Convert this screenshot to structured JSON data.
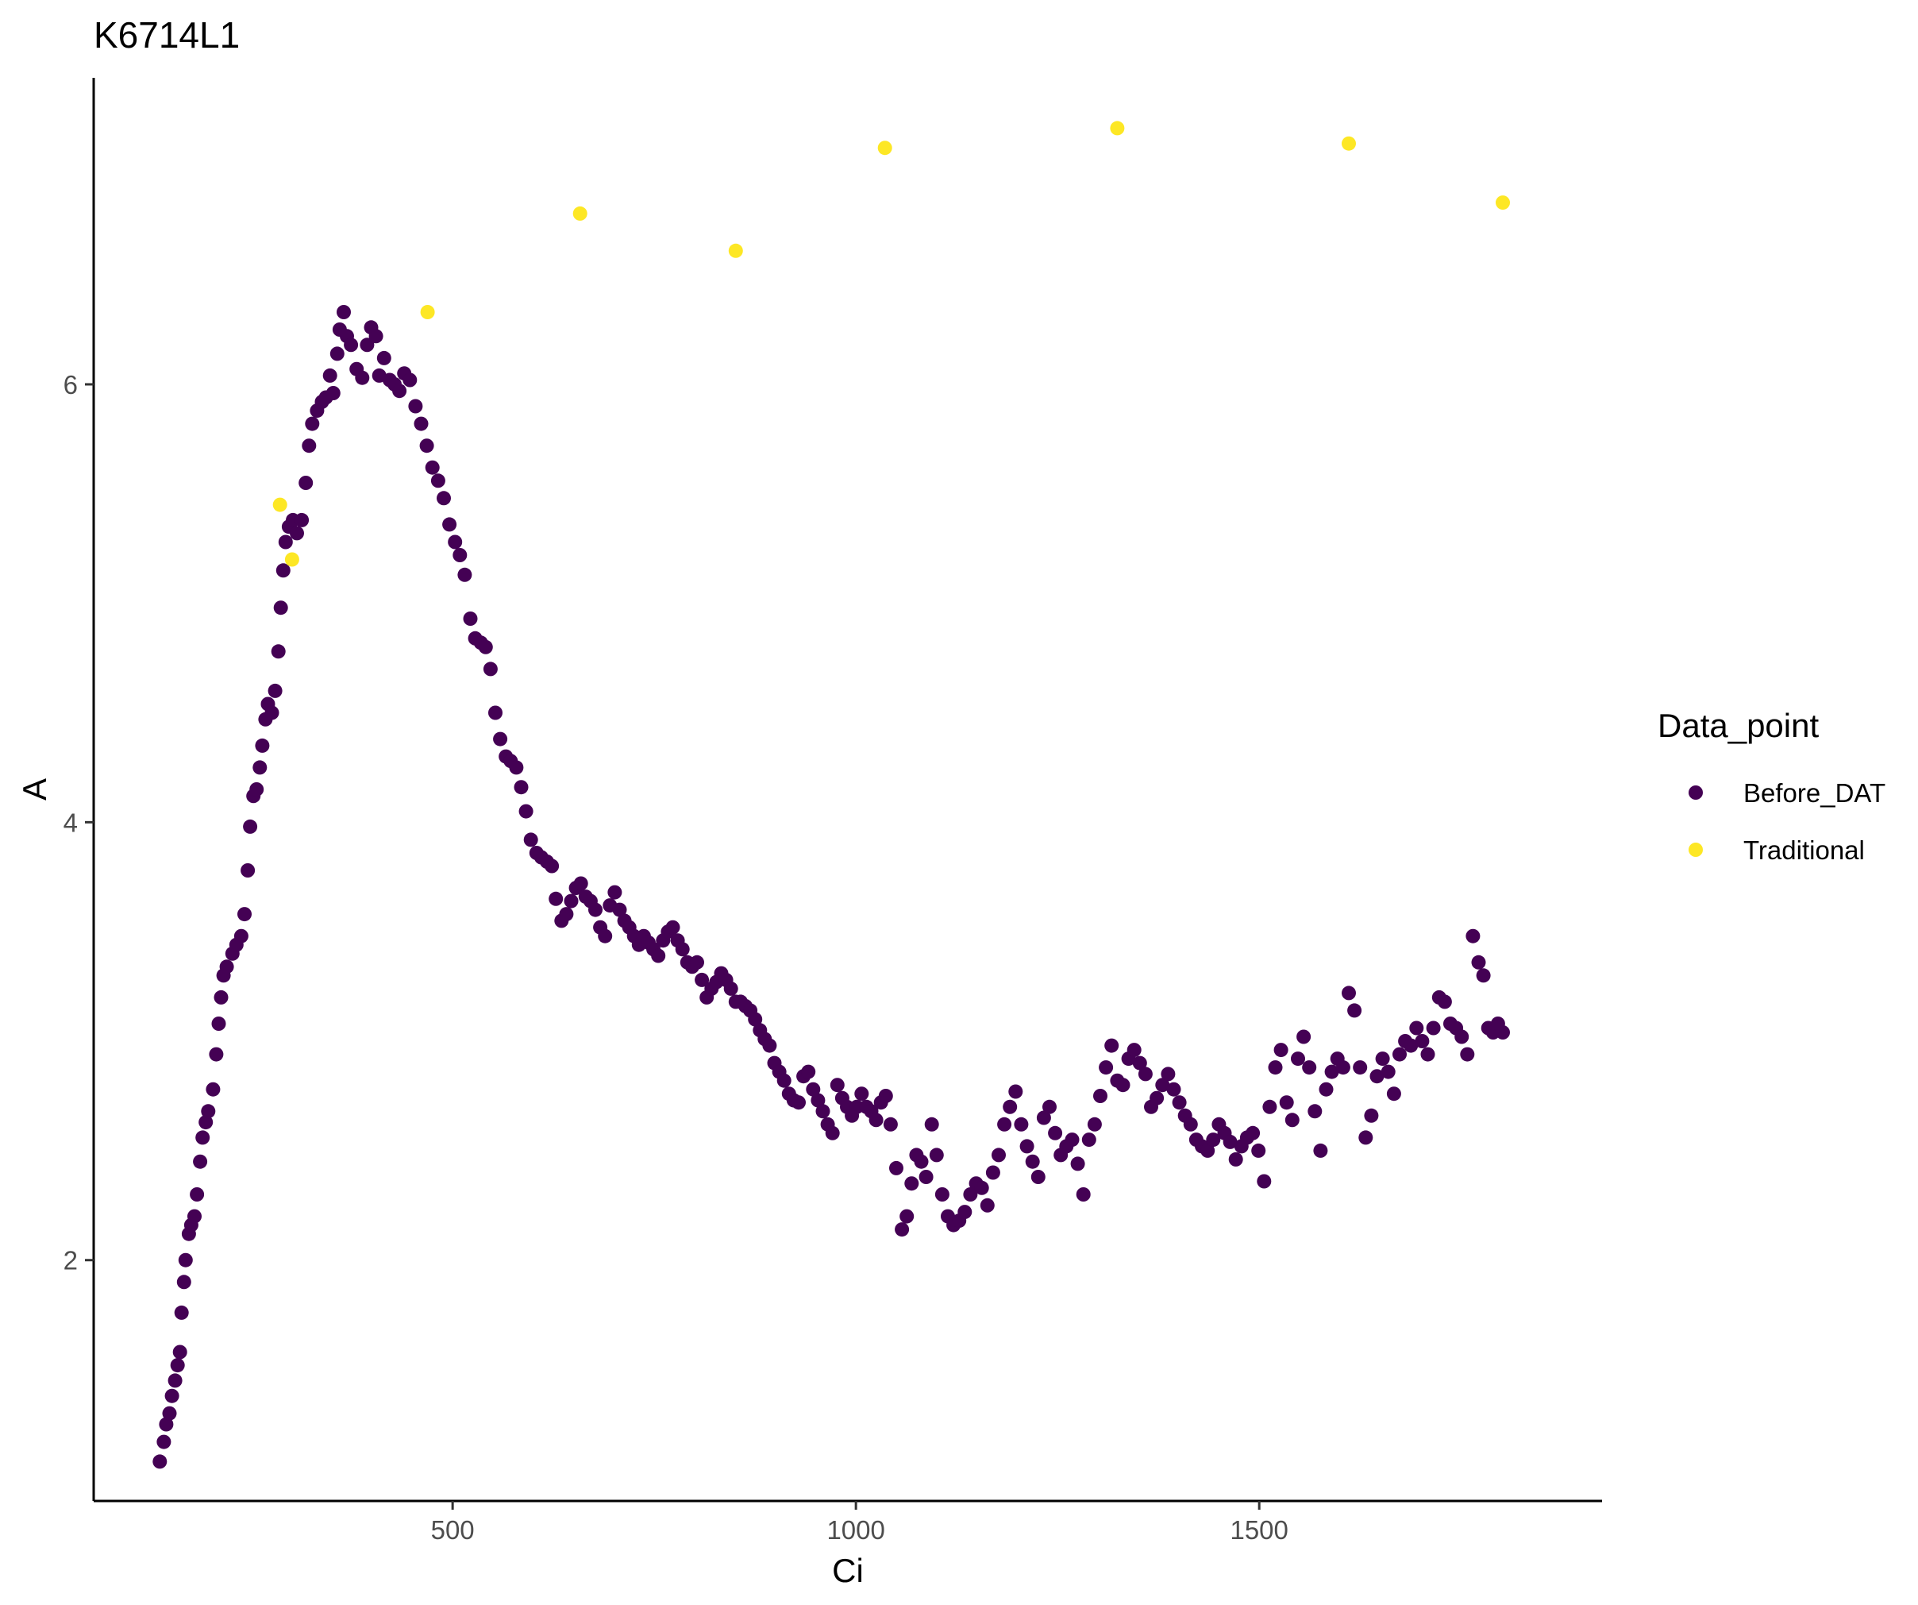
{
  "chart_data": {
    "type": "scatter",
    "title": "K6714L1",
    "xlabel": "Ci",
    "ylabel": "A",
    "xlim": [
      55,
      1925
    ],
    "ylim": [
      0.9,
      7.4
    ],
    "x_ticks": [
      500,
      1000,
      1500
    ],
    "y_ticks": [
      2,
      4,
      6
    ],
    "x_tick_labels": [
      "500",
      "1000",
      "1500"
    ],
    "y_tick_labels": [
      "2",
      "4",
      "6"
    ],
    "grid": false,
    "legend": {
      "title": "Data_point",
      "position": "right"
    },
    "series": [
      {
        "name": "Before_DAT",
        "color": "#440154",
        "points": [
          [
            137,
            1.08
          ],
          [
            142,
            1.17
          ],
          [
            145,
            1.25
          ],
          [
            149,
            1.3
          ],
          [
            152,
            1.38
          ],
          [
            156,
            1.45
          ],
          [
            159,
            1.52
          ],
          [
            162,
            1.58
          ],
          [
            164,
            1.76
          ],
          [
            167,
            1.9
          ],
          [
            169,
            2.0
          ],
          [
            173,
            2.12
          ],
          [
            176,
            2.16
          ],
          [
            180,
            2.2
          ],
          [
            183,
            2.3
          ],
          [
            187,
            2.45
          ],
          [
            190,
            2.56
          ],
          [
            194,
            2.63
          ],
          [
            197,
            2.68
          ],
          [
            203,
            2.78
          ],
          [
            207,
            2.94
          ],
          [
            210,
            3.08
          ],
          [
            213,
            3.2
          ],
          [
            216,
            3.3
          ],
          [
            220,
            3.34
          ],
          [
            227,
            3.4
          ],
          [
            232,
            3.44
          ],
          [
            238,
            3.48
          ],
          [
            242,
            3.58
          ],
          [
            246,
            3.78
          ],
          [
            249,
            3.98
          ],
          [
            253,
            4.12
          ],
          [
            257,
            4.15
          ],
          [
            261,
            4.25
          ],
          [
            264,
            4.35
          ],
          [
            268,
            4.47
          ],
          [
            271,
            4.54
          ],
          [
            276,
            4.5
          ],
          [
            280,
            4.6
          ],
          [
            284,
            4.78
          ],
          [
            287,
            4.98
          ],
          [
            290,
            5.15
          ],
          [
            293,
            5.28
          ],
          [
            297,
            5.35
          ],
          [
            302,
            5.38
          ],
          [
            307,
            5.32
          ],
          [
            313,
            5.38
          ],
          [
            318,
            5.55
          ],
          [
            322,
            5.72
          ],
          [
            326,
            5.82
          ],
          [
            332,
            5.88
          ],
          [
            338,
            5.92
          ],
          [
            343,
            5.94
          ],
          [
            348,
            6.04
          ],
          [
            352,
            5.96
          ],
          [
            357,
            6.14
          ],
          [
            360,
            6.25
          ],
          [
            365,
            6.33
          ],
          [
            369,
            6.22
          ],
          [
            374,
            6.18
          ],
          [
            381,
            6.07
          ],
          [
            388,
            6.03
          ],
          [
            394,
            6.18
          ],
          [
            399,
            6.26
          ],
          [
            405,
            6.22
          ],
          [
            409,
            6.04
          ],
          [
            415,
            6.12
          ],
          [
            422,
            6.02
          ],
          [
            428,
            6.0
          ],
          [
            434,
            5.97
          ],
          [
            440,
            6.05
          ],
          [
            447,
            6.02
          ],
          [
            454,
            5.9
          ],
          [
            461,
            5.82
          ],
          [
            468,
            5.72
          ],
          [
            475,
            5.62
          ],
          [
            482,
            5.56
          ],
          [
            489,
            5.48
          ],
          [
            496,
            5.36
          ],
          [
            503,
            5.28
          ],
          [
            509,
            5.22
          ],
          [
            515,
            5.13
          ],
          [
            522,
            4.93
          ],
          [
            528,
            4.84
          ],
          [
            535,
            4.82
          ],
          [
            541,
            4.8
          ],
          [
            547,
            4.7
          ],
          [
            553,
            4.5
          ],
          [
            559,
            4.38
          ],
          [
            566,
            4.3
          ],
          [
            572,
            4.28
          ],
          [
            579,
            4.25
          ],
          [
            585,
            4.16
          ],
          [
            591,
            4.05
          ],
          [
            597,
            3.92
          ],
          [
            604,
            3.86
          ],
          [
            610,
            3.84
          ],
          [
            617,
            3.82
          ],
          [
            623,
            3.8
          ],
          [
            628,
            3.65
          ],
          [
            635,
            3.55
          ],
          [
            641,
            3.58
          ],
          [
            647,
            3.64
          ],
          [
            653,
            3.7
          ],
          [
            659,
            3.72
          ],
          [
            665,
            3.66
          ],
          [
            671,
            3.64
          ],
          [
            677,
            3.6
          ],
          [
            683,
            3.52
          ],
          [
            689,
            3.48
          ],
          [
            695,
            3.62
          ],
          [
            701,
            3.68
          ],
          [
            707,
            3.6
          ],
          [
            713,
            3.55
          ],
          [
            719,
            3.52
          ],
          [
            725,
            3.48
          ],
          [
            731,
            3.44
          ],
          [
            737,
            3.48
          ],
          [
            743,
            3.45
          ],
          [
            749,
            3.42
          ],
          [
            755,
            3.39
          ],
          [
            761,
            3.46
          ],
          [
            767,
            3.5
          ],
          [
            773,
            3.52
          ],
          [
            779,
            3.46
          ],
          [
            785,
            3.42
          ],
          [
            791,
            3.36
          ],
          [
            797,
            3.34
          ],
          [
            803,
            3.36
          ],
          [
            809,
            3.28
          ],
          [
            815,
            3.2
          ],
          [
            821,
            3.24
          ],
          [
            827,
            3.27
          ],
          [
            833,
            3.31
          ],
          [
            839,
            3.28
          ],
          [
            845,
            3.24
          ],
          [
            851,
            3.18
          ],
          [
            857,
            3.18
          ],
          [
            863,
            3.16
          ],
          [
            869,
            3.14
          ],
          [
            875,
            3.1
          ],
          [
            881,
            3.05
          ],
          [
            887,
            3.01
          ],
          [
            893,
            2.98
          ],
          [
            899,
            2.9
          ],
          [
            905,
            2.86
          ],
          [
            911,
            2.82
          ],
          [
            917,
            2.76
          ],
          [
            923,
            2.73
          ],
          [
            929,
            2.72
          ],
          [
            935,
            2.84
          ],
          [
            941,
            2.86
          ],
          [
            947,
            2.78
          ],
          [
            953,
            2.73
          ],
          [
            959,
            2.68
          ],
          [
            965,
            2.62
          ],
          [
            971,
            2.58
          ],
          [
            977,
            2.8
          ],
          [
            983,
            2.74
          ],
          [
            989,
            2.7
          ],
          [
            995,
            2.66
          ],
          [
            1001,
            2.7
          ],
          [
            1007,
            2.76
          ],
          [
            1013,
            2.7
          ],
          [
            1019,
            2.68
          ],
          [
            1025,
            2.64
          ],
          [
            1031,
            2.72
          ],
          [
            1037,
            2.75
          ],
          [
            1043,
            2.62
          ],
          [
            1050,
            2.42
          ],
          [
            1057,
            2.14
          ],
          [
            1063,
            2.2
          ],
          [
            1069,
            2.35
          ],
          [
            1075,
            2.48
          ],
          [
            1081,
            2.45
          ],
          [
            1087,
            2.38
          ],
          [
            1094,
            2.62
          ],
          [
            1100,
            2.48
          ],
          [
            1107,
            2.3
          ],
          [
            1114,
            2.2
          ],
          [
            1121,
            2.16
          ],
          [
            1128,
            2.18
          ],
          [
            1135,
            2.22
          ],
          [
            1142,
            2.3
          ],
          [
            1149,
            2.35
          ],
          [
            1156,
            2.33
          ],
          [
            1163,
            2.25
          ],
          [
            1170,
            2.4
          ],
          [
            1177,
            2.48
          ],
          [
            1184,
            2.62
          ],
          [
            1191,
            2.7
          ],
          [
            1198,
            2.77
          ],
          [
            1205,
            2.62
          ],
          [
            1212,
            2.52
          ],
          [
            1219,
            2.45
          ],
          [
            1226,
            2.38
          ],
          [
            1233,
            2.65
          ],
          [
            1240,
            2.7
          ],
          [
            1247,
            2.58
          ],
          [
            1254,
            2.48
          ],
          [
            1261,
            2.52
          ],
          [
            1268,
            2.55
          ],
          [
            1275,
            2.44
          ],
          [
            1282,
            2.3
          ],
          [
            1289,
            2.55
          ],
          [
            1296,
            2.62
          ],
          [
            1303,
            2.75
          ],
          [
            1310,
            2.88
          ],
          [
            1317,
            2.98
          ],
          [
            1324,
            2.82
          ],
          [
            1331,
            2.8
          ],
          [
            1338,
            2.92
          ],
          [
            1345,
            2.96
          ],
          [
            1352,
            2.9
          ],
          [
            1359,
            2.85
          ],
          [
            1366,
            2.7
          ],
          [
            1373,
            2.74
          ],
          [
            1380,
            2.8
          ],
          [
            1387,
            2.85
          ],
          [
            1394,
            2.78
          ],
          [
            1401,
            2.72
          ],
          [
            1408,
            2.66
          ],
          [
            1415,
            2.62
          ],
          [
            1422,
            2.55
          ],
          [
            1429,
            2.52
          ],
          [
            1436,
            2.5
          ],
          [
            1443,
            2.55
          ],
          [
            1450,
            2.62
          ],
          [
            1457,
            2.58
          ],
          [
            1464,
            2.54
          ],
          [
            1471,
            2.46
          ],
          [
            1478,
            2.52
          ],
          [
            1485,
            2.56
          ],
          [
            1492,
            2.58
          ],
          [
            1499,
            2.5
          ],
          [
            1506,
            2.36
          ],
          [
            1513,
            2.7
          ],
          [
            1520,
            2.88
          ],
          [
            1527,
            2.96
          ],
          [
            1534,
            2.72
          ],
          [
            1541,
            2.64
          ],
          [
            1548,
            2.92
          ],
          [
            1555,
            3.02
          ],
          [
            1562,
            2.88
          ],
          [
            1569,
            2.68
          ],
          [
            1576,
            2.5
          ],
          [
            1583,
            2.78
          ],
          [
            1590,
            2.86
          ],
          [
            1597,
            2.92
          ],
          [
            1604,
            2.88
          ],
          [
            1611,
            3.22
          ],
          [
            1618,
            3.14
          ],
          [
            1625,
            2.88
          ],
          [
            1632,
            2.56
          ],
          [
            1639,
            2.66
          ],
          [
            1646,
            2.84
          ],
          [
            1653,
            2.92
          ],
          [
            1660,
            2.86
          ],
          [
            1667,
            2.76
          ],
          [
            1674,
            2.94
          ],
          [
            1681,
            3.0
          ],
          [
            1688,
            2.98
          ],
          [
            1695,
            3.06
          ],
          [
            1702,
            3.0
          ],
          [
            1709,
            2.94
          ],
          [
            1716,
            3.06
          ],
          [
            1723,
            3.2
          ],
          [
            1730,
            3.18
          ],
          [
            1737,
            3.08
          ],
          [
            1744,
            3.06
          ],
          [
            1751,
            3.02
          ],
          [
            1758,
            2.94
          ],
          [
            1765,
            3.48
          ],
          [
            1772,
            3.36
          ],
          [
            1778,
            3.3
          ],
          [
            1784,
            3.06
          ],
          [
            1790,
            3.04
          ],
          [
            1796,
            3.08
          ],
          [
            1802,
            3.04
          ]
        ]
      },
      {
        "name": "Traditional",
        "color": "#fde725",
        "points": [
          [
            286,
            5.45
          ],
          [
            301,
            5.2
          ],
          [
            469,
            6.33
          ],
          [
            658,
            6.78
          ],
          [
            851,
            6.61
          ],
          [
            1036,
            7.08
          ],
          [
            1324,
            7.17
          ],
          [
            1611,
            7.1
          ],
          [
            1802,
            6.83
          ]
        ]
      }
    ]
  }
}
